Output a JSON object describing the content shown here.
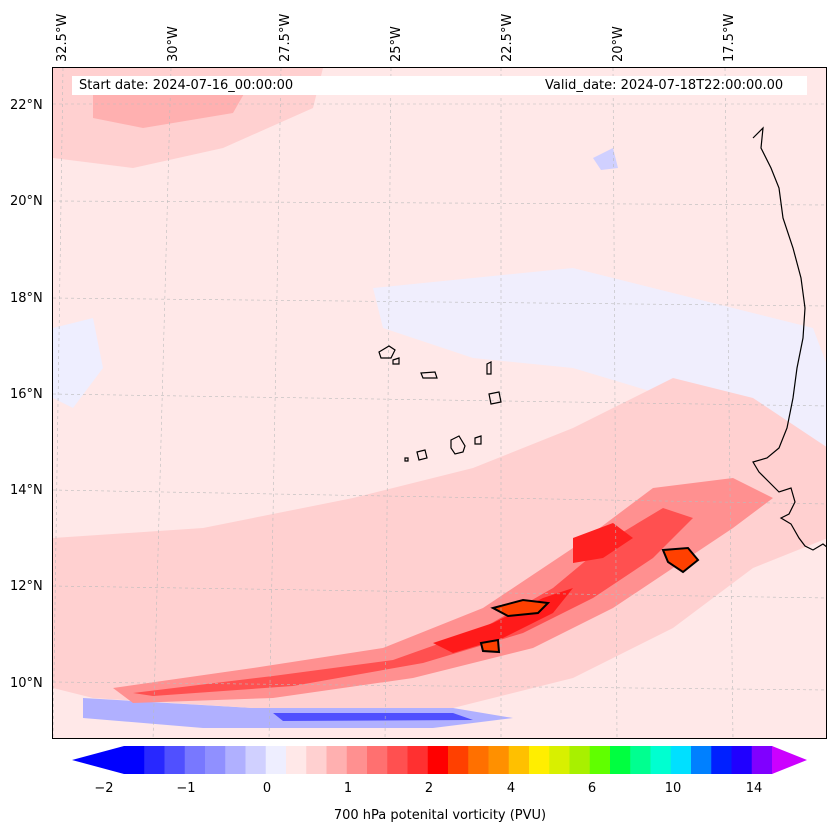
{
  "map": {
    "start_date": "Start date: 2024-07-16_00:00:00",
    "valid_date": "Valid_date: 2024-07-18T22:00:00.00",
    "longitude_labels": [
      "32.5°W",
      "30°W",
      "27.5°W",
      "25°W",
      "22.5°W",
      "20°W",
      "17.5°W"
    ],
    "latitude_labels": [
      "22°N",
      "20°N",
      "18°N",
      "16°N",
      "14°N",
      "12°N",
      "10°N"
    ],
    "gridlines": true,
    "background_color": "#ffe8e8"
  },
  "colorbar": {
    "label": "700 hPa potenital vorticity (PVU)",
    "tick_labels": [
      "−2",
      "−1",
      "0",
      "1",
      "2",
      "4",
      "6",
      "10",
      "14"
    ],
    "extend": "both",
    "colors": [
      "#0000ff",
      "#2828ff",
      "#5050ff",
      "#7878ff",
      "#9090ff",
      "#b0b0ff",
      "#d0d0ff",
      "#eeeeff",
      "#ffe8e8",
      "#ffd0d0",
      "#ffb0b0",
      "#ff9090",
      "#ff7070",
      "#ff5050",
      "#ff3030",
      "#ff0000",
      "#ff4000",
      "#ff7000",
      "#ff9000",
      "#ffc000",
      "#ffee00",
      "#d8f000",
      "#a8f000",
      "#60ff00",
      "#00ff40",
      "#00ff90",
      "#00ffd0",
      "#00e0ff",
      "#0080ff",
      "#0020ff",
      "#2000ff",
      "#8000ff"
    ],
    "under_color": "#0000ff",
    "over_color": "#cc00ff"
  }
}
